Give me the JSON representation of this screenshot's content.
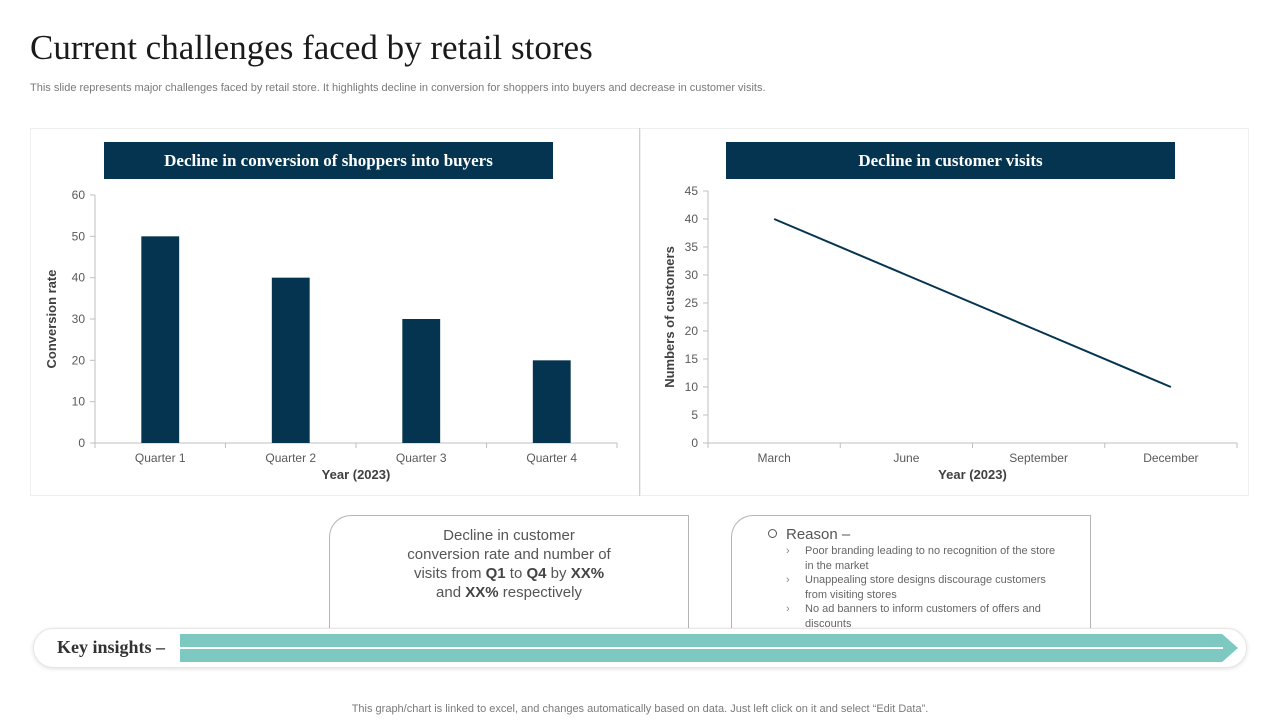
{
  "slide": {
    "title": "Current challenges  faced by retail stores",
    "subtitle": "This slide represents major challenges faced by retail store. It highlights decline in conversion for shoppers into buyers and decrease in customer visits.",
    "footer": "This graph/chart is linked to excel,  and changes automatically based on data. Just left click on it and select “Edit Data”."
  },
  "chart_data": [
    {
      "type": "bar",
      "title": "Decline in conversion of shoppers into buyers",
      "categories": [
        "Quarter 1",
        "Quarter 2",
        "Quarter 3",
        "Quarter 4"
      ],
      "values": [
        50,
        40,
        30,
        20
      ],
      "xlabel": "Year (2023)",
      "ylabel": "Conversion rate",
      "ylim": [
        0,
        60
      ],
      "yticks": [
        0,
        10,
        20,
        30,
        40,
        50,
        60
      ],
      "color": "#04344f",
      "grid": false,
      "legend": "none"
    },
    {
      "type": "line",
      "title": "Decline in customer visits",
      "categories": [
        "March",
        "June",
        "September",
        "December"
      ],
      "values": [
        40,
        30,
        20,
        10
      ],
      "xlabel": "Year (2023)",
      "ylabel": "Numbers of customers",
      "ylim": [
        0,
        45
      ],
      "yticks": [
        0,
        5,
        10,
        15,
        20,
        25,
        30,
        35,
        40,
        45
      ],
      "color": "#04344f",
      "grid": false,
      "legend": "none"
    }
  ],
  "callout1": {
    "line1": "Decline in customer",
    "line2": "conversion rate and number  of",
    "line3_a": "visits from ",
    "line3_q1": "Q1",
    "line3_b": " to ",
    "line3_q4": "Q4",
    "line3_c": " by ",
    "line3_xx1": "XX%",
    "line4_a": "and  ",
    "line4_xx2": "XX%",
    "line4_b": " respectively"
  },
  "reasons": {
    "heading": "Reason –",
    "items": [
      "Poor branding leading to no recognition of the store in the market",
      "Unappealing store designs discourage customers from visiting stores",
      "No ad banners to inform customers of offers and discounts"
    ]
  },
  "insights": {
    "label": "Key insights –"
  }
}
